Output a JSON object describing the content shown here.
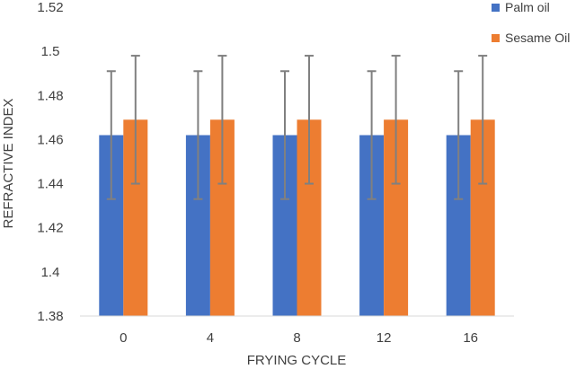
{
  "chart_data": {
    "type": "bar",
    "title": "",
    "xlabel": "FRYING CYCLE",
    "ylabel": "REFRACTIVE INDEX",
    "categories": [
      "0",
      "4",
      "8",
      "12",
      "16"
    ],
    "ylim": [
      1.38,
      1.52
    ],
    "yticks": [
      "1.38",
      "1.4",
      "1.42",
      "1.44",
      "1.46",
      "1.48",
      "1.5",
      "1.52"
    ],
    "grid": false,
    "legend_position": "top-right",
    "series": [
      {
        "name": "Palm oil",
        "color": "#4472C4",
        "values": [
          1.462,
          1.462,
          1.462,
          1.462,
          1.462
        ],
        "error": [
          0.029,
          0.029,
          0.029,
          0.029,
          0.029
        ]
      },
      {
        "name": "Sesame Oil",
        "color": "#ED7D31",
        "values": [
          1.469,
          1.469,
          1.469,
          1.469,
          1.469
        ],
        "error": [
          0.029,
          0.029,
          0.029,
          0.029,
          0.029
        ]
      }
    ],
    "error_bar_color": "#808080"
  }
}
